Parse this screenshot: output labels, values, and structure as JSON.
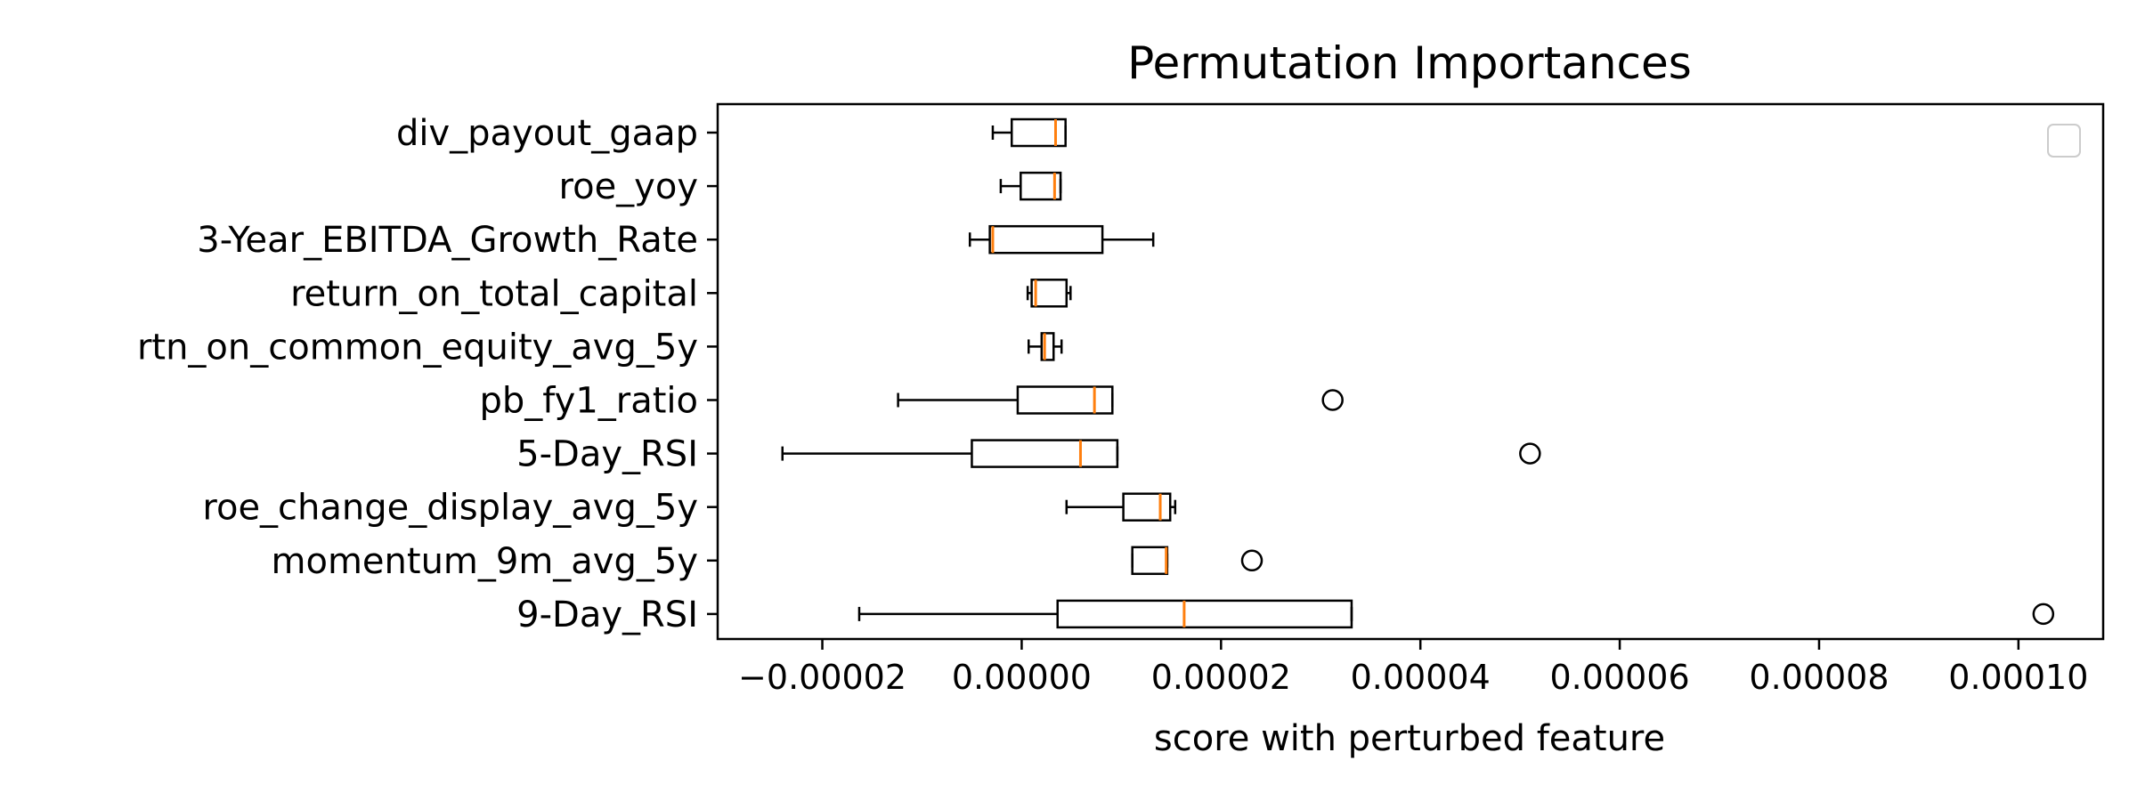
{
  "chart_data": {
    "type": "boxplot",
    "orientation": "horizontal",
    "title": "Permutation Importances",
    "xlabel": "score with perturbed feature",
    "ylabel": "",
    "xlim": [
      -3.05e-05,
      0.0001085
    ],
    "xticks": [
      -2e-05,
      0.0,
      2e-05,
      4e-05,
      6e-05,
      8e-05,
      0.0001
    ],
    "xtick_labels": [
      "−0.00002",
      "0.00000",
      "0.00002",
      "0.00004",
      "0.00006",
      "0.00008",
      "0.00010"
    ],
    "grid": false,
    "legend": "top-right (empty)",
    "colors": {
      "box": "#000000",
      "median": "#ff7f0e"
    },
    "categories": [
      "div_payout_gaap",
      "roe_yoy",
      "3-Year_EBITDA_Growth_Rate",
      "return_on_total_capital",
      "rtn_on_common_equity_avg_5y",
      "pb_fy1_ratio",
      "5-Day_RSI",
      "roe_change_display_avg_5y",
      "momentum_9m_avg_5y",
      "9-Day_RSI"
    ],
    "boxes": [
      {
        "feature": "div_payout_gaap",
        "whisker_low": -2.9e-06,
        "q1": -1e-06,
        "median": 3.4e-06,
        "q3": 4.4e-06,
        "whisker_high": 4.4e-06,
        "outliers": []
      },
      {
        "feature": "roe_yoy",
        "whisker_low": -2.1e-06,
        "q1": -1e-07,
        "median": 3.3e-06,
        "q3": 3.9e-06,
        "whisker_high": 3.9e-06,
        "outliers": []
      },
      {
        "feature": "3-Year_EBITDA_Growth_Rate",
        "whisker_low": -5.2e-06,
        "q1": -3.2e-06,
        "median": -2.9e-06,
        "q3": 8.1e-06,
        "whisker_high": 1.32e-05,
        "outliers": []
      },
      {
        "feature": "return_on_total_capital",
        "whisker_low": 6e-07,
        "q1": 1e-06,
        "median": 1.4e-06,
        "q3": 4.5e-06,
        "whisker_high": 4.9e-06,
        "outliers": []
      },
      {
        "feature": "rtn_on_common_equity_avg_5y",
        "whisker_low": 7e-07,
        "q1": 2e-06,
        "median": 2.3e-06,
        "q3": 3.2e-06,
        "whisker_high": 4e-06,
        "outliers": []
      },
      {
        "feature": "pb_fy1_ratio",
        "whisker_low": -1.24e-05,
        "q1": -4e-07,
        "median": 7.3e-06,
        "q3": 9.1e-06,
        "whisker_high": 9.1e-06,
        "outliers": [
          3.12e-05
        ]
      },
      {
        "feature": "5-Day_RSI",
        "whisker_low": -2.4e-05,
        "q1": -5e-06,
        "median": 5.9e-06,
        "q3": 9.6e-06,
        "whisker_high": 9.6e-06,
        "outliers": [
          5.1e-05
        ]
      },
      {
        "feature": "roe_change_display_avg_5y",
        "whisker_low": 4.5e-06,
        "q1": 1.02e-05,
        "median": 1.39e-05,
        "q3": 1.49e-05,
        "whisker_high": 1.54e-05,
        "outliers": []
      },
      {
        "feature": "momentum_9m_avg_5y",
        "whisker_low": 1.11e-05,
        "q1": 1.11e-05,
        "median": 1.45e-05,
        "q3": 1.46e-05,
        "whisker_high": 1.46e-05,
        "outliers": [
          2.31e-05
        ]
      },
      {
        "feature": "9-Day_RSI",
        "whisker_low": -1.63e-05,
        "q1": 3.6e-06,
        "median": 1.63e-05,
        "q3": 3.31e-05,
        "whisker_high": 3.31e-05,
        "outliers": [
          0.0001025
        ]
      }
    ]
  }
}
